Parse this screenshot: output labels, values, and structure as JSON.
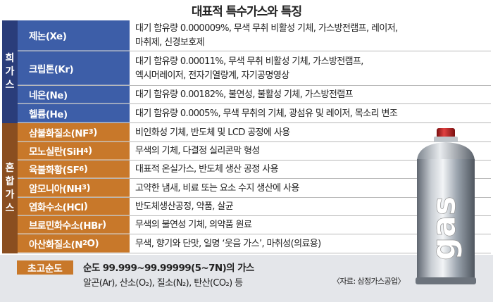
{
  "title": "대표적 특수가스와 특징",
  "groups": {
    "rare": "희가스",
    "mixed": "혼합가스"
  },
  "rare_gases": [
    {
      "name": "제논(Xe)",
      "line1": "대기 함유량 0.000009%, 무색 무취 비활성 기체, 가스방전램프, 레이저,",
      "line2": "마취제, 신경보호제"
    },
    {
      "name": "크립톤(Kr)",
      "line1": "대기 함유량 0.00011%, 무색 무취 비활성 기체, 가스방전램프,",
      "line2": "엑시머레이저, 전자기열량계, 자기공명영상"
    },
    {
      "name": "네온(Ne)",
      "line1": "대기 함유량 0.00182%, 불연성, 불활성 기체, 가스방전램프"
    },
    {
      "name": "헬륨(He)",
      "line1": "대기 함유량 0.0005%, 무색 무취의 기체, 광섬유 및 레이저, 목소리 변조"
    }
  ],
  "mixed_gases": [
    {
      "name_main": "삼불화질소(NF",
      "name_sub": "3",
      "name_end": ")",
      "desc": "비인화성 기체, 반도체 및 LCD 공정에 사용"
    },
    {
      "name_main": "모노실란(SiH",
      "name_sub": "4",
      "name_end": ")",
      "desc": "무색의 기체, 다결정 실리콘막 형성"
    },
    {
      "name_main": "육불화황(SF",
      "name_sub": "6",
      "name_end": ")",
      "desc": "대표적 온실가스, 반도체 생산 공정 사용"
    },
    {
      "name_main": "암모니아(NH",
      "name_sub": "3",
      "name_end": ")",
      "desc": "고약한 냄새, 비료 또는 요소 수지 생산에 사용"
    },
    {
      "name_main": "염화수소(HCl",
      "name_sub": "",
      "name_end": ")",
      "desc": "반도체생산공정, 약품, 살균"
    },
    {
      "name_main": "브로민화수소(HBr",
      "name_sub": "",
      "name_end": ")",
      "desc": "무색의 불연성 기체, 의약품 원료"
    },
    {
      "name_main": "아산화질소(N",
      "name_sub": "2",
      "name_end": "O)",
      "desc": "무색, 향기와 단맛, 일명 ‘웃음 가스’, 마취성(의료용)"
    }
  ],
  "purity": {
    "label": "초고순도",
    "text": "순도 99.999~99.99999(5~7N)의 가스",
    "gases": "알곤(Ar), 산소(O₂), 질소(N₂), 탄산(CO₂) 등",
    "source": "〈자료: 삼정가스공업〉"
  },
  "can_text": "gas",
  "colors": {
    "rare_group": "#2a3d7a",
    "rare_cell": "#3d5ea8",
    "mixed_group": "#8a4e20",
    "mixed_cell": "#c8782a",
    "can_cap": "#c0201e",
    "can_body": "#9aa3ad"
  }
}
